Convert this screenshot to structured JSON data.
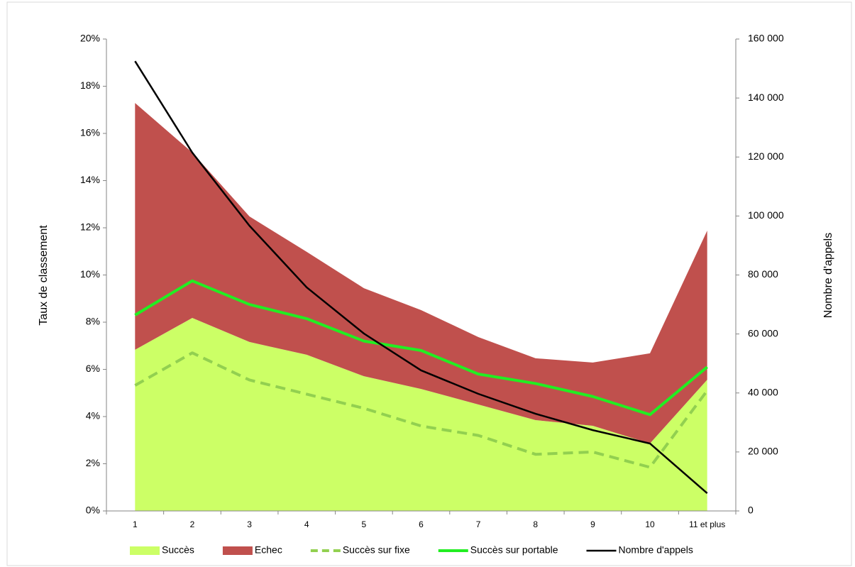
{
  "chart_data": {
    "type": "combo",
    "categories": [
      "1",
      "2",
      "3",
      "4",
      "5",
      "6",
      "7",
      "8",
      "9",
      "10",
      "11 et plus"
    ],
    "y_label": "Taux de classement",
    "y2_label": "Nombre d'appels",
    "ylim": [
      0,
      20
    ],
    "yticks": [
      {
        "value": 0,
        "label": "0%"
      },
      {
        "value": 2,
        "label": "2%"
      },
      {
        "value": 4,
        "label": "4%"
      },
      {
        "value": 6,
        "label": "6%"
      },
      {
        "value": 8,
        "label": "8%"
      },
      {
        "value": 10,
        "label": "10%"
      },
      {
        "value": 12,
        "label": "12%"
      },
      {
        "value": 14,
        "label": "14%"
      },
      {
        "value": 16,
        "label": "16%"
      },
      {
        "value": 18,
        "label": "18%"
      },
      {
        "value": 20,
        "label": "20%"
      }
    ],
    "y2lim": [
      0,
      160000
    ],
    "y2ticks": [
      0,
      {
        "value": 20000,
        "label": "20 000"
      },
      {
        "value": 40000,
        "label": "40 000"
      },
      {
        "value": 60000,
        "label": "60 000"
      },
      {
        "value": 80000,
        "label": "80 000"
      },
      {
        "value": 100000,
        "label": "100 000"
      },
      {
        "value": 120000,
        "label": "120 000"
      },
      {
        "value": 140000,
        "label": "140 000"
      },
      {
        "value": 160000,
        "label": "160 000"
      }
    ],
    "grid": false,
    "legend": "bottom",
    "series": [
      {
        "name": "Succès",
        "type": "area",
        "stacked": true,
        "color": "#ccff66",
        "values": [
          6.83,
          8.18,
          7.16,
          6.62,
          5.71,
          5.17,
          4.51,
          3.85,
          3.61,
          2.86,
          5.56
        ]
      },
      {
        "name": "Echec",
        "type": "area",
        "stacked": true,
        "color": "#c0504d",
        "values": [
          10.46,
          7.01,
          5.32,
          4.36,
          3.73,
          3.34,
          2.86,
          2.62,
          2.68,
          3.82,
          6.32
        ]
      },
      {
        "name": "Succès sur fixe",
        "type": "line",
        "dashed": true,
        "color": "#92d050",
        "values": [
          5.32,
          6.7,
          5.55,
          4.95,
          4.35,
          3.6,
          3.2,
          2.4,
          2.5,
          1.85,
          5.1
        ]
      },
      {
        "name": "Succès sur portable",
        "type": "line",
        "dashed": false,
        "color": "#22ee22",
        "values": [
          8.3,
          9.75,
          8.75,
          8.15,
          7.2,
          6.8,
          5.8,
          5.4,
          4.85,
          4.08,
          6.1
        ]
      },
      {
        "name": "Nombre d'appels",
        "type": "line",
        "dashed": false,
        "axis": "y2",
        "color": "#000000",
        "values": [
          152500,
          121500,
          96700,
          75800,
          60150,
          47650,
          39700,
          32950,
          27400,
          22860,
          6000
        ]
      }
    ]
  }
}
